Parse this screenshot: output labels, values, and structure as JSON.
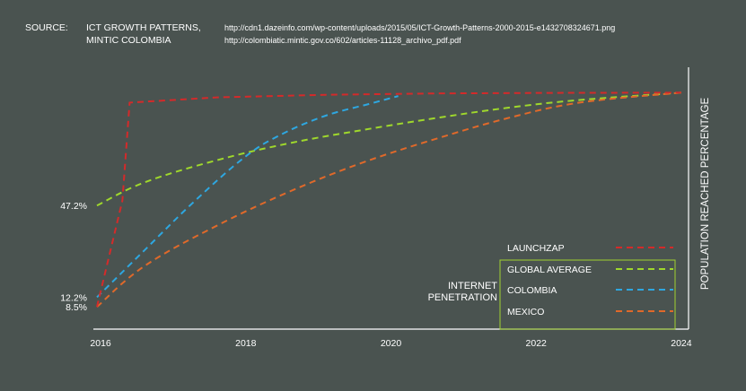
{
  "source": {
    "label": "SOURCE:",
    "names": [
      "ICT GROWTH PATTERNS,",
      "MINTIC COLOMBIA"
    ],
    "urls": [
      "http://cdn1.dazeinfo.com/wp-content/uploads/2015/05/ICT-Growth-Patterns-2000-2015-e1432708324671.png",
      "http://colombiatic.mintic.gov.co/602/articles-11128_archivo_pdf.pdf"
    ]
  },
  "chart_data": {
    "type": "line",
    "title": "",
    "xlabel": "",
    "ylabel": "POPULATION REACHED PERCENTAGE",
    "xlim": [
      2015.8,
      2024
    ],
    "ylim": [
      0,
      100
    ],
    "x_ticks": [
      "2016",
      "2018",
      "2020",
      "2022",
      "2024"
    ],
    "x_tick_values": [
      2015.9,
      2017.9,
      2019.9,
      2021.9,
      2023.9
    ],
    "y_ticks": [
      "8.5%",
      "12.2%",
      "47.2%"
    ],
    "y_tick_values": [
      8.5,
      12.2,
      47.2
    ],
    "grid": false,
    "legend_title": [
      "INTERNET",
      "PENETRATION"
    ],
    "legend_position": "bottom-right",
    "highlighted_legend_entries": [
      "GLOBAL AVERAGE",
      "COLOMBIA",
      "MEXICO"
    ],
    "line_style": "dashed",
    "series": [
      {
        "name": "LAUNCHZAP",
        "color": "#d42a2a",
        "x": [
          2015.85,
          2016.2,
          2016.3,
          2017.5,
          2019,
          2020.5,
          2022,
          2023.9
        ],
        "y": [
          8.5,
          49,
          86.5,
          88.5,
          89.5,
          90,
          90.2,
          90.3
        ]
      },
      {
        "name": "GLOBAL AVERAGE",
        "color": "#9fd82c",
        "x": [
          2015.85,
          2016.5,
          2017.5,
          2018.5,
          2019.5,
          2020.5,
          2021.5,
          2022.5,
          2023.9
        ],
        "y": [
          47.2,
          56,
          64.5,
          71,
          76,
          80.5,
          84.5,
          87.5,
          90.3
        ]
      },
      {
        "name": "COLOMBIA",
        "color": "#2ea7e0",
        "x": [
          2015.85,
          2016.5,
          2017.2,
          2017.9,
          2018.4,
          2019,
          2019.6,
          2020
        ],
        "y": [
          12.2,
          30,
          49,
          66,
          74.5,
          81.5,
          86,
          89
        ]
      },
      {
        "name": "MEXICO",
        "color": "#e0692a",
        "x": [
          2015.85,
          2016.5,
          2017.5,
          2018.5,
          2019.5,
          2020.5,
          2021.5,
          2022.5,
          2023.9
        ],
        "y": [
          8.5,
          24,
          39.5,
          52.5,
          63.5,
          72.5,
          80.5,
          86.5,
          90.3
        ]
      }
    ]
  },
  "colors": {
    "background": "#4a5350",
    "foreground": "#ffffff",
    "legend_box": "#a0d030"
  }
}
